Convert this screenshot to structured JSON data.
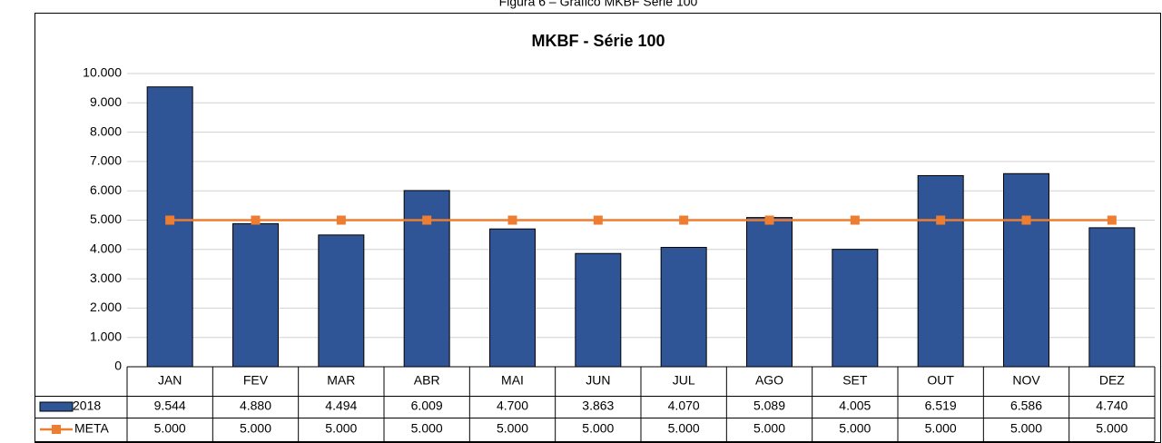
{
  "caption": "Figura 6 – Gráfico MKBF Série 100",
  "chart_data": {
    "type": "bar",
    "title": "MKBF - Série 100",
    "categories": [
      "JAN",
      "FEV",
      "MAR",
      "ABR",
      "MAI",
      "JUN",
      "JUL",
      "AGO",
      "SET",
      "OUT",
      "NOV",
      "DEZ"
    ],
    "series": [
      {
        "name": "2018",
        "color": "#2f5597",
        "values": [
          9544,
          4880,
          4494,
          6009,
          4700,
          3863,
          4070,
          5089,
          4005,
          6519,
          6586,
          4740
        ],
        "value_labels": [
          "9.544",
          "4.880",
          "4.494",
          "6.009",
          "4.700",
          "3.863",
          "4.070",
          "5.089",
          "4.005",
          "6.519",
          "6.586",
          "4.740"
        ]
      },
      {
        "name": "META",
        "type": "line",
        "color": "#ed7d31",
        "values": [
          5000,
          5000,
          5000,
          5000,
          5000,
          5000,
          5000,
          5000,
          5000,
          5000,
          5000,
          5000
        ],
        "value_labels": [
          "5.000",
          "5.000",
          "5.000",
          "5.000",
          "5.000",
          "5.000",
          "5.000",
          "5.000",
          "5.000",
          "5.000",
          "5.000",
          "5.000"
        ]
      }
    ],
    "ylim": [
      0,
      10000
    ],
    "yticks": [
      0,
      {
        "value": 1000,
        "label": "1.000"
      },
      {
        "value": 2000,
        "label": "2.000"
      },
      {
        "value": 3000,
        "label": "3.000"
      },
      {
        "value": 4000,
        "label": "4.000"
      },
      {
        "value": 5000,
        "label": "5.000"
      },
      {
        "value": 6000,
        "label": "6.000"
      },
      {
        "value": 7000,
        "label": "7.000"
      },
      {
        "value": 8000,
        "label": "8.000"
      },
      {
        "value": 9000,
        "label": "9.000"
      },
      {
        "value": 10000,
        "label": "10.000"
      }
    ],
    "grid": true
  }
}
